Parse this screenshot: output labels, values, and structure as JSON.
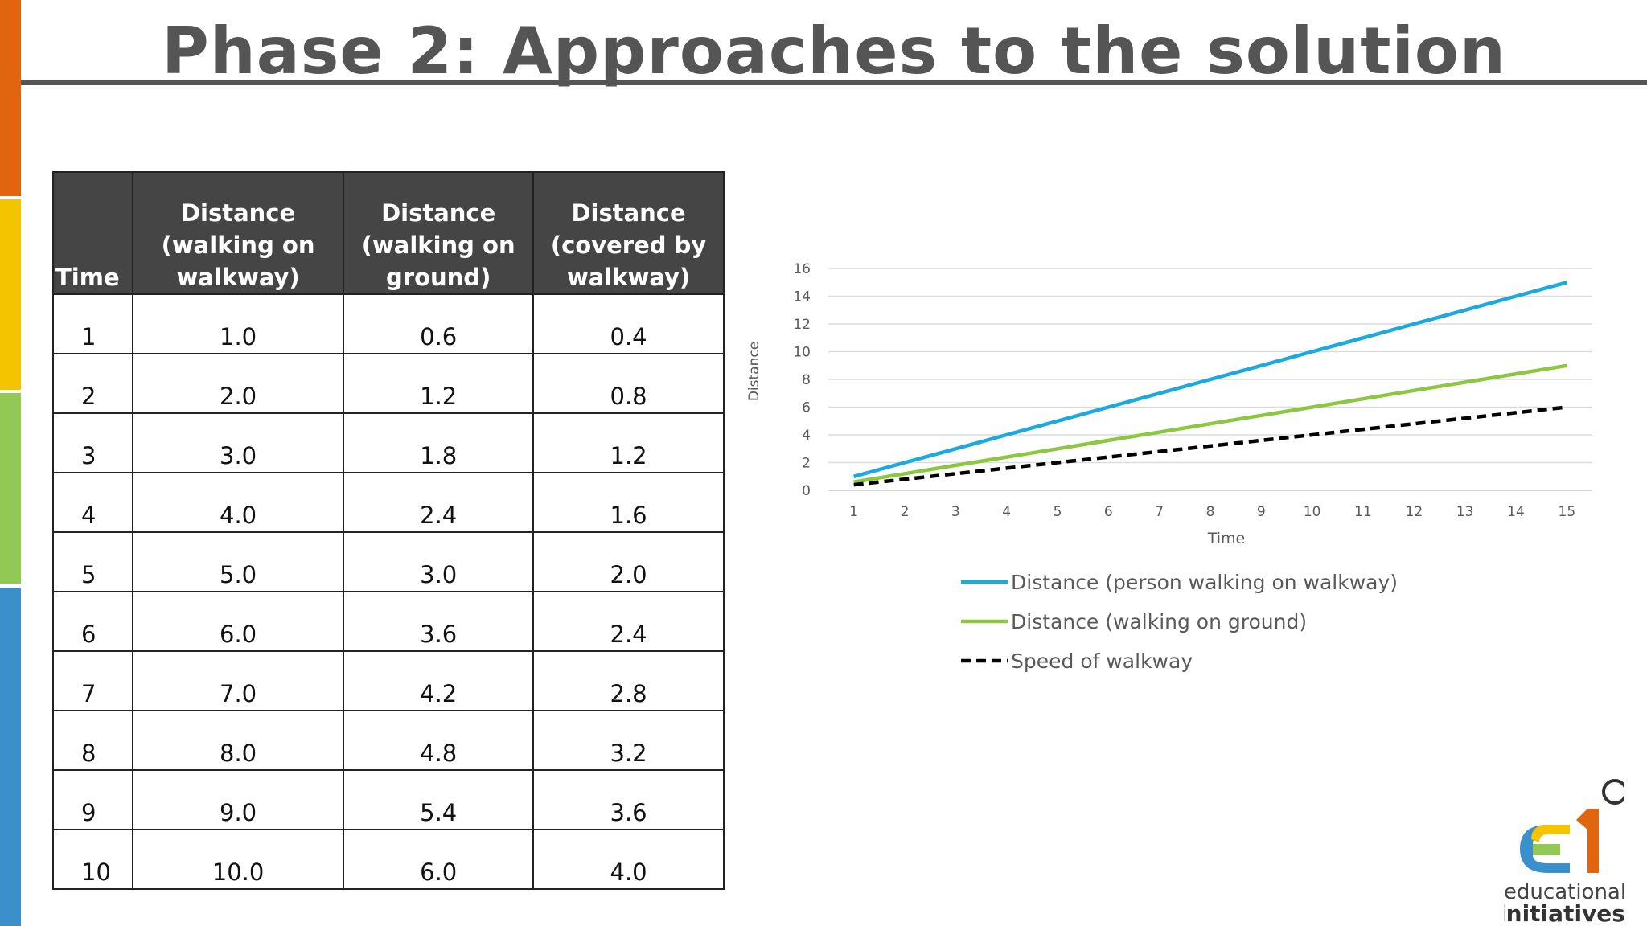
{
  "slide": {
    "title": "Phase 2: Approaches to the solution",
    "accent_colors": [
      "#e1640f",
      "#f5c400",
      "#92c954",
      "#3b8fcb"
    ]
  },
  "table": {
    "headers": [
      "Time",
      "Distance (walking on walkway)",
      "Distance (walking on ground)",
      "Distance (covered by walkway)"
    ],
    "rows": [
      [
        "1",
        "1.0",
        "0.6",
        "0.4"
      ],
      [
        "2",
        "2.0",
        "1.2",
        "0.8"
      ],
      [
        "3",
        "3.0",
        "1.8",
        "1.2"
      ],
      [
        "4",
        "4.0",
        "2.4",
        "1.6"
      ],
      [
        "5",
        "5.0",
        "3.0",
        "2.0"
      ],
      [
        "6",
        "6.0",
        "3.6",
        "2.4"
      ],
      [
        "7",
        "7.0",
        "4.2",
        "2.8"
      ],
      [
        "8",
        "8.0",
        "4.8",
        "3.2"
      ],
      [
        "9",
        "9.0",
        "5.4",
        "3.6"
      ],
      [
        "10",
        "10.0",
        "6.0",
        "4.0"
      ]
    ]
  },
  "chart_data": {
    "type": "line",
    "xlabel": "Time",
    "ylabel": "Distance",
    "x": [
      1,
      2,
      3,
      4,
      5,
      6,
      7,
      8,
      9,
      10,
      11,
      12,
      13,
      14,
      15
    ],
    "ylim": [
      0,
      16
    ],
    "yticks": [
      0,
      2,
      4,
      6,
      8,
      10,
      12,
      14,
      16
    ],
    "grid": true,
    "legend_position": "bottom",
    "series": [
      {
        "name": "Distance (person walking on walkway)",
        "color": "#1ba9e0",
        "style": "solid",
        "values": [
          1,
          2,
          3,
          4,
          5,
          6,
          7,
          8,
          9,
          10,
          11,
          12,
          13,
          14,
          15
        ]
      },
      {
        "name": "Distance (walking on ground)",
        "color": "#8dc63f",
        "style": "solid",
        "values": [
          0.6,
          1.2,
          1.8,
          2.4,
          3.0,
          3.6,
          4.2,
          4.8,
          5.4,
          6.0,
          6.6,
          7.2,
          7.8,
          8.4,
          9.0
        ]
      },
      {
        "name": "Speed of walkway",
        "color": "#000000",
        "style": "dashed",
        "values": [
          0.4,
          0.8,
          1.2,
          1.6,
          2.0,
          2.4,
          2.8,
          3.2,
          3.6,
          4.0,
          4.4,
          4.8,
          5.2,
          5.6,
          6.0
        ]
      }
    ]
  },
  "logo": {
    "line1": "educational",
    "line2": "initiatives"
  }
}
